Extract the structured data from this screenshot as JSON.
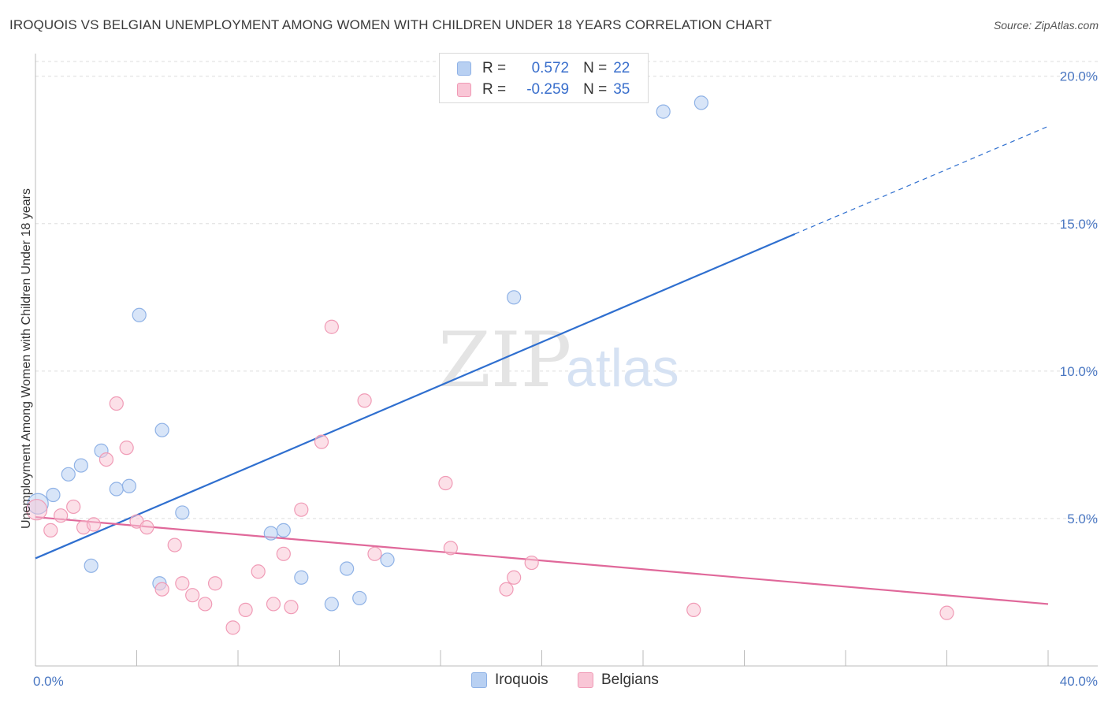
{
  "header": {
    "title": "IROQUOIS VS BELGIAN UNEMPLOYMENT AMONG WOMEN WITH CHILDREN UNDER 18 YEARS CORRELATION CHART",
    "source": "Source: ZipAtlas.com"
  },
  "watermark": {
    "zip": "ZIP",
    "atlas": "atlas"
  },
  "legend": {
    "series": [
      {
        "r_label": "R =",
        "r_value": "0.572",
        "n_label": "N =",
        "n_value": "22",
        "fill": "#b8d0f2",
        "stroke": "#8fb2e6"
      },
      {
        "r_label": "R =",
        "r_value": "-0.259",
        "n_label": "N =",
        "n_value": "35",
        "fill": "#f9c6d6",
        "stroke": "#f09bb6"
      }
    ]
  },
  "bottom_legend": [
    {
      "label": "Iroquois",
      "fill": "#b8d0f2",
      "stroke": "#8fb2e6"
    },
    {
      "label": "Belgians",
      "fill": "#f9c6d6",
      "stroke": "#f09bb6"
    }
  ],
  "chart_data": {
    "type": "scatter",
    "title": "IROQUOIS VS BELGIAN UNEMPLOYMENT AMONG WOMEN WITH CHILDREN UNDER 18 YEARS CORRELATION CHART",
    "xlabel": "",
    "ylabel": "Unemployment Among Women with Children Under 18 years",
    "xlim": [
      0,
      40
    ],
    "ylim": [
      0,
      20.5
    ],
    "x_tick_labels": [
      {
        "value": 0,
        "label": "0.0%"
      },
      {
        "value": 40,
        "label": "40.0%"
      }
    ],
    "y_tick_labels": [
      {
        "value": 5,
        "label": "5.0%"
      },
      {
        "value": 10,
        "label": "10.0%"
      },
      {
        "value": 15,
        "label": "15.0%"
      },
      {
        "value": 20,
        "label": "20.0%"
      }
    ],
    "grid": true,
    "colors": {
      "iroquois": "#2f6fcf",
      "belgians": "#e0689a",
      "tick_text": "#4a77c2"
    },
    "series": [
      {
        "name": "Iroquois",
        "color": "#2f6fcf",
        "points": [
          [
            0.1,
            5.5
          ],
          [
            0.7,
            5.8
          ],
          [
            1.3,
            6.5
          ],
          [
            1.8,
            6.8
          ],
          [
            2.2,
            3.4
          ],
          [
            2.6,
            7.3
          ],
          [
            3.2,
            6.0
          ],
          [
            3.7,
            6.1
          ],
          [
            4.1,
            11.9
          ],
          [
            4.9,
            2.8
          ],
          [
            5.0,
            8.0
          ],
          [
            5.8,
            5.2
          ],
          [
            9.3,
            4.5
          ],
          [
            9.8,
            4.6
          ],
          [
            10.5,
            3.0
          ],
          [
            11.7,
            2.1
          ],
          [
            12.3,
            3.3
          ],
          [
            12.8,
            2.3
          ],
          [
            13.9,
            3.6
          ],
          [
            18.9,
            12.5
          ],
          [
            24.8,
            18.8
          ],
          [
            26.3,
            19.1
          ]
        ],
        "trend": {
          "x0": 0,
          "y0": 3.65,
          "x1": 30.0,
          "y1": 14.65,
          "x_dash_end": 40,
          "y_dash_end": 18.3
        }
      },
      {
        "name": "Belgians",
        "color": "#e0689a",
        "points": [
          [
            0.05,
            5.3
          ],
          [
            0.6,
            4.6
          ],
          [
            1.0,
            5.1
          ],
          [
            1.5,
            5.4
          ],
          [
            1.9,
            4.7
          ],
          [
            2.3,
            4.8
          ],
          [
            2.8,
            7.0
          ],
          [
            3.2,
            8.9
          ],
          [
            3.6,
            7.4
          ],
          [
            4.0,
            4.9
          ],
          [
            4.4,
            4.7
          ],
          [
            5.0,
            2.6
          ],
          [
            5.5,
            4.1
          ],
          [
            5.8,
            2.8
          ],
          [
            6.2,
            2.4
          ],
          [
            6.7,
            2.1
          ],
          [
            7.1,
            2.8
          ],
          [
            7.8,
            1.3
          ],
          [
            8.3,
            1.9
          ],
          [
            8.8,
            3.2
          ],
          [
            9.4,
            2.1
          ],
          [
            9.8,
            3.8
          ],
          [
            10.1,
            2.0
          ],
          [
            10.5,
            5.3
          ],
          [
            11.3,
            7.6
          ],
          [
            11.7,
            11.5
          ],
          [
            13.0,
            9.0
          ],
          [
            13.4,
            3.8
          ],
          [
            16.2,
            6.2
          ],
          [
            16.4,
            4.0
          ],
          [
            18.6,
            2.6
          ],
          [
            18.9,
            3.0
          ],
          [
            19.6,
            3.5
          ],
          [
            26.0,
            1.9
          ],
          [
            36.0,
            1.8
          ]
        ],
        "trend": {
          "x0": 0,
          "y0": 5.05,
          "x1": 40,
          "y1": 2.1
        }
      }
    ]
  }
}
